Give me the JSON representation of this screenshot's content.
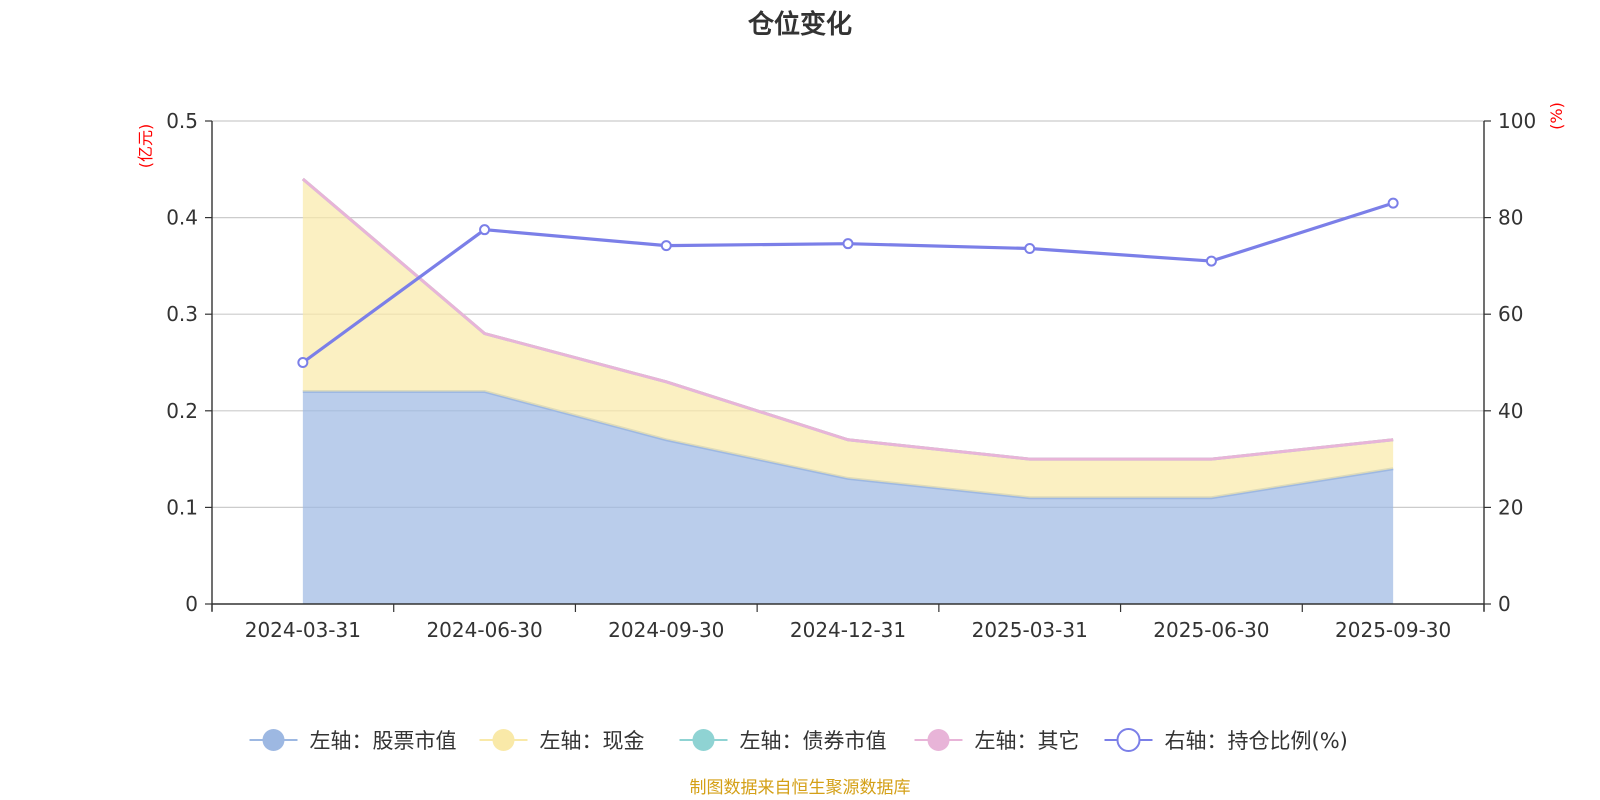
{
  "chart_data": {
    "type": "area",
    "title": "仓位变化",
    "source": "制图数据来自恒生聚源数据库",
    "left_axis": {
      "unit": "(亿元)",
      "ylim": [
        0,
        0.5
      ],
      "ticks": [
        "0",
        "0.1",
        "0.2",
        "0.3",
        "0.4",
        "0.5"
      ],
      "tick_values": [
        0,
        0.1,
        0.2,
        0.3,
        0.4,
        0.5
      ]
    },
    "right_axis": {
      "unit": "(%)",
      "ylim": [
        0,
        100
      ],
      "ticks": [
        "0",
        "20",
        "40",
        "60",
        "80",
        "100"
      ],
      "tick_values": [
        0,
        20,
        40,
        60,
        80,
        100
      ]
    },
    "categories": [
      "2024-03-31",
      "2024-06-30",
      "2024-09-30",
      "2024-12-31",
      "2025-03-31",
      "2025-06-30",
      "2025-09-30"
    ],
    "series": [
      {
        "name": "左轴：股票市值",
        "axis": "left",
        "stacked": true,
        "color": "#9db8e2",
        "values": [
          0.22,
          0.22,
          0.17,
          0.13,
          0.11,
          0.11,
          0.14
        ]
      },
      {
        "name": "左轴：现金",
        "axis": "left",
        "stacked": true,
        "color": "#f9e9a8",
        "values": [
          0.22,
          0.06,
          0.06,
          0.04,
          0.04,
          0.04,
          0.03
        ]
      },
      {
        "name": "左轴：债券市值",
        "axis": "left",
        "stacked": true,
        "color": "#8fd3d3",
        "values": [
          0,
          0,
          0,
          0,
          0,
          0,
          0
        ]
      },
      {
        "name": "左轴：其它",
        "axis": "left",
        "stacked": true,
        "color": "#e8b4d8",
        "values": [
          0,
          0,
          0,
          0,
          0,
          0,
          0
        ]
      },
      {
        "name": "右轴：持仓比例(%)",
        "axis": "right",
        "type": "line",
        "color": "#7b7fe8",
        "values": [
          50,
          77.5,
          74.2,
          74.6,
          73.6,
          71,
          83
        ]
      }
    ],
    "grid": true,
    "legend_position": "bottom"
  }
}
